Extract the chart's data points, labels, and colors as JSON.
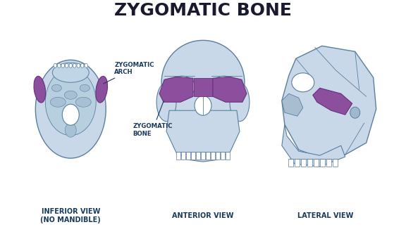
{
  "title": "ZYGOMATIC BONE",
  "title_color": "#1a1a2e",
  "title_fontsize": 18,
  "title_fontweight": "bold",
  "background_color": "#ffffff",
  "label_color": "#1a3a5c",
  "label_fontsize": 7,
  "skull_outline_color": "#5a7fa0",
  "skull_fill_color": "#c8d8e8",
  "skull_fill_light": "#dce8f0",
  "zygo_fill_color": "#8b4f9e",
  "zygo_outline_color": "#6a2f7e",
  "label1": "ZYGOMATIC\nARCH",
  "label2": "ZYGOMATIC\nBONE",
  "view1": "INFERIOR VIEW\n(NO MANDIBLE)",
  "view2": "ANTERIOR VIEW",
  "view3": "LATERAL VIEW"
}
